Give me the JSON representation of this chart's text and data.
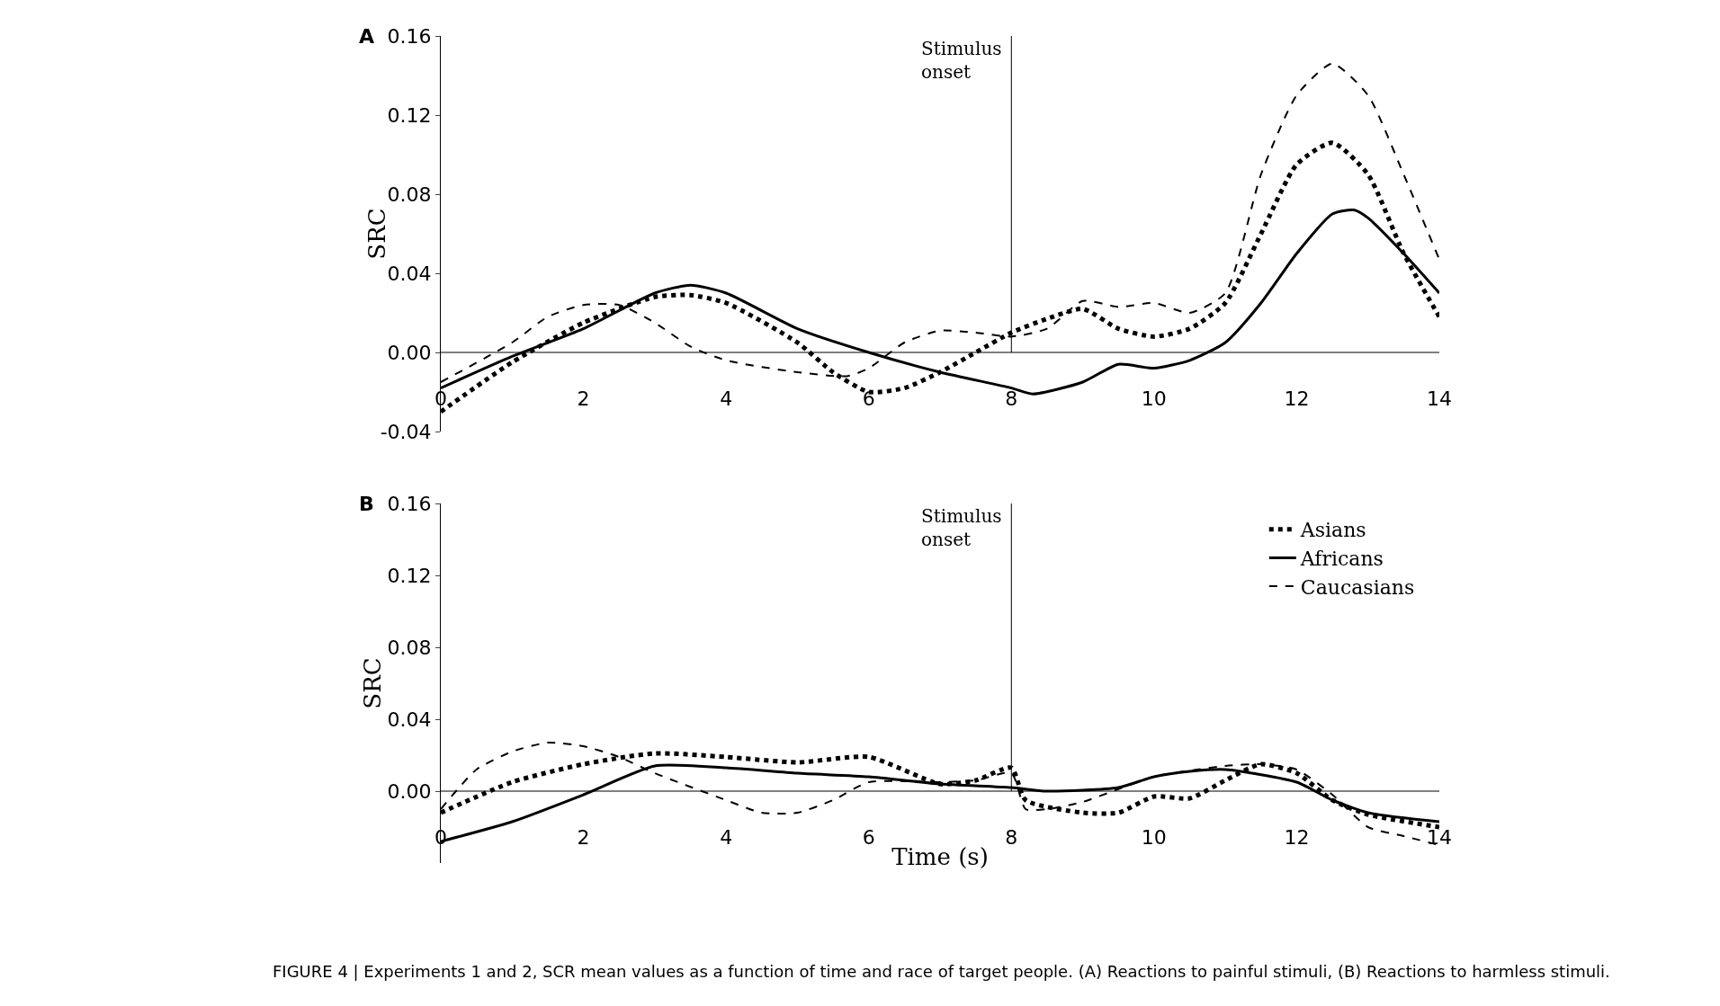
{
  "chart_data": [
    {
      "type": "line",
      "title": "A",
      "ylabel": "SRC",
      "xlim": [
        0,
        14
      ],
      "xticks": [
        {
          "value": 0,
          "label": "0"
        },
        2,
        4,
        6,
        8,
        10,
        12,
        14
      ],
      "ylim": [
        -0.04,
        0.16
      ],
      "yticks": [
        {
          "value": -0.04,
          "label": "-0.04"
        },
        {
          "value": 0,
          "label": "0.00"
        },
        {
          "value": 0.04,
          "label": "0.04"
        },
        {
          "value": 0.08,
          "label": "0.08"
        },
        {
          "value": 0.12,
          "label": "0.12"
        },
        {
          "value": 0.16,
          "label": "0.16"
        }
      ],
      "grid": false,
      "legend": false,
      "ref_lines": [
        {
          "axis": "x",
          "value": 8,
          "label": "Stimulus onset",
          "color": "#000000"
        }
      ],
      "series": [
        {
          "color": "#000000",
          "line_style": "dotted",
          "x": [
            0,
            1,
            2,
            3,
            3.5,
            4,
            5,
            5.5,
            6,
            6.5,
            7,
            7.5,
            8,
            8.5,
            9,
            9.5,
            10,
            10.5,
            11,
            11.5,
            12,
            12.5,
            13,
            13.5,
            14
          ],
          "values": [
            -0.03,
            -0.005,
            0.015,
            0.028,
            0.029,
            0.025,
            0.005,
            -0.01,
            -0.02,
            -0.018,
            -0.01,
            0.0,
            0.01,
            0.017,
            0.022,
            0.012,
            0.008,
            0.012,
            0.025,
            0.06,
            0.095,
            0.106,
            0.09,
            0.05,
            0.018
          ]
        },
        {
          "color": "#000000",
          "line_style": "solid",
          "x": [
            0,
            1,
            2,
            3,
            3.5,
            4,
            5,
            6,
            7,
            8,
            8.3,
            9,
            9.5,
            10,
            10.5,
            11,
            11.5,
            12,
            12.5,
            12.8,
            13,
            13.5,
            14
          ],
          "values": [
            -0.018,
            -0.002,
            0.012,
            0.03,
            0.034,
            0.03,
            0.012,
            0.0,
            -0.01,
            -0.018,
            -0.021,
            -0.015,
            -0.006,
            -0.008,
            -0.004,
            0.005,
            0.025,
            0.05,
            0.07,
            0.072,
            0.068,
            0.05,
            0.03
          ]
        },
        {
          "color": "#000000",
          "line_style": "dashed",
          "x": [
            0,
            1,
            1.5,
            2,
            2.5,
            3,
            3.5,
            4,
            5,
            5.7,
            6,
            6.5,
            7,
            7.5,
            8,
            8.5,
            9,
            9.5,
            10,
            10.5,
            11,
            11.5,
            12,
            12.5,
            13,
            13.5,
            14
          ],
          "values": [
            -0.015,
            0.005,
            0.018,
            0.024,
            0.024,
            0.015,
            0.003,
            -0.004,
            -0.01,
            -0.012,
            -0.008,
            0.005,
            0.011,
            0.01,
            0.008,
            0.012,
            0.026,
            0.023,
            0.025,
            0.02,
            0.03,
            0.09,
            0.13,
            0.146,
            0.13,
            0.09,
            0.047
          ]
        }
      ]
    },
    {
      "type": "line",
      "title": "B",
      "xlabel": "Time (s)",
      "ylabel": "SRC",
      "xlim": [
        0,
        14
      ],
      "xticks": [
        {
          "value": 0,
          "label": "0"
        },
        2,
        4,
        6,
        8,
        10,
        12,
        14
      ],
      "ylim": [
        -0.04,
        0.16
      ],
      "yticks": [
        {
          "value": 0,
          "label": "0.00"
        },
        {
          "value": 0.04,
          "label": "0.04"
        },
        {
          "value": 0.08,
          "label": "0.08"
        },
        {
          "value": 0.12,
          "label": "0.12"
        },
        {
          "value": 0.16,
          "label": "0.16"
        }
      ],
      "grid": false,
      "legend": "top right",
      "ref_lines": [
        {
          "axis": "x",
          "value": 8,
          "label": "Stimulus onset",
          "color": "#000000"
        }
      ],
      "annotations": [
        "FIGURE 4 | Experiments 1 and 2, SCR mean values as a function of time and race of target people. (A) Reactions to painful stimuli, (B) Reactions to harmless stimuli."
      ],
      "series": [
        {
          "name": "Asians",
          "color": "#000000",
          "line_style": "dotted",
          "x": [
            0,
            1,
            2,
            3,
            4,
            5,
            6,
            7,
            7.5,
            8,
            8.2,
            9,
            9.5,
            10,
            10.5,
            11,
            11.5,
            12,
            12.5,
            13,
            14
          ],
          "values": [
            -0.012,
            0.005,
            0.015,
            0.021,
            0.019,
            0.016,
            0.019,
            0.004,
            0.006,
            0.013,
            -0.005,
            -0.012,
            -0.012,
            -0.003,
            -0.004,
            0.006,
            0.015,
            0.01,
            -0.005,
            -0.013,
            -0.02
          ]
        },
        {
          "name": "Africans",
          "color": "#000000",
          "line_style": "solid",
          "x": [
            0,
            1,
            2,
            3,
            4,
            5,
            6,
            7,
            8,
            8.5,
            9.5,
            10,
            10.5,
            11,
            12,
            12.5,
            13,
            14
          ],
          "values": [
            -0.028,
            -0.017,
            -0.002,
            0.014,
            0.013,
            0.01,
            0.008,
            0.004,
            0.002,
            0.0,
            0.002,
            0.008,
            0.011,
            0.012,
            0.005,
            -0.005,
            -0.012,
            -0.017
          ]
        },
        {
          "name": "Caucasians",
          "color": "#000000",
          "line_style": "dashed",
          "x": [
            0,
            0.5,
            1,
            1.5,
            2,
            2.5,
            3,
            4,
            4.5,
            5,
            5.5,
            6,
            7,
            7.5,
            8,
            8.2,
            8.5,
            9,
            10,
            11,
            11.5,
            12,
            12.5,
            13,
            13.5,
            14
          ],
          "values": [
            -0.01,
            0.012,
            0.022,
            0.027,
            0.025,
            0.019,
            0.01,
            -0.005,
            -0.012,
            -0.012,
            -0.005,
            0.005,
            0.005,
            0.006,
            0.01,
            -0.01,
            -0.01,
            -0.006,
            0.008,
            0.014,
            0.015,
            0.012,
            -0.002,
            -0.02,
            -0.025,
            -0.03
          ]
        }
      ]
    }
  ]
}
